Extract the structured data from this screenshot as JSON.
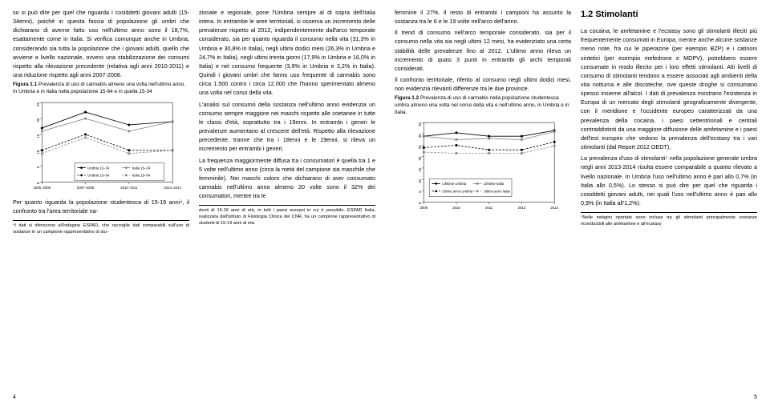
{
  "left_page": {
    "col1": {
      "para1": "so si può dire per quel che riguarda i cosiddetti giovani adulti (15-34enni), poiché in questa fascia di popolazione gli umbri che dichiarano di averne fatto uso nell'ultimo anno sono il 18,7%, esattamente come in Italia. Si verifica comunque anche in Umbria, considerando sia tutta la popolazione che i giovani adulti, quello che avviene a livello nazionale, ovvero una stabilizzazione dei consumi rispetto alla rilevazione precedente (relativa agli anni 2010-2011) e una riduzione rispetto agli anni 2007-2008.",
      "figcap": "Prevalenza di uso di cannabis almeno una volta nell'ultimo anno. In Umbria e in Italia nella popolazione 15-64 e in quella 15-34",
      "fignum": "Figura 1.1",
      "after_chart": "Per quanto riguarda la popolazione studentesca di 15-19 anni⁴, il confronto tra l'area territoriale na-",
      "footnote": "⁴I dati si riferiscono all'indagine ESPAD, che raccoglie dati comparabili sull'uso di sostanze in un campione rappresentativo di stu-"
    },
    "col2": {
      "para1": "zionale e regionale, pone l'Umbria sempre al di sopra dell'Italia intera. In entrambe le aree territoriali, si osserva un incremento delle prevalenze rispetto al 2012, indipendentemente dall'arco temporale considerato, sia per quanto riguarda il consumo nella vita (31,3% in Umbria e 30,8% in Italia), negli ultimi dodici mesi (26,3% in Umbria e 24,7% in Italia), negli ultimi trenta giorni (17,9% in Umbria e 16,0% in Italia) e nel consumo frequente (3,9% in Umbria e 3,2% in Italia). Quindi i giovani umbri che fanno uso frequente di cannabis sono circa 1.500 contro i circa 12.000 che l'hanno sperimentato almeno una volta nel corso della vita.",
      "para2": "L'analisi sul consumo della sostanza nell'ultimo anno evidenzia un consumo sempre maggiore nei maschi rispetto alle coetanee in tutte le classi d'età, soprattutto tra i 19enni. In entrambi i generi le prevalenze aumentano al crescere dell'età. Rispetto alla rilevazione precedente, tranne che tra i 18enni e le 19enni, si rileva un incremento per entrambi i generi.",
      "para3": "La frequenza maggiormente diffusa tra i consumatori è quella tra 1 e 5 volte nell'ultimo anno (circa la metà del campione sia maschile che femminile). Nei maschi coloro che dichiarano di aver consumato cannabis nell'ultimo anno almeno 20 volte sono il 32% dei consumatori, mentre tra le",
      "footnote": "denti di 15-16 anni di età, in tutti i paesi europei in cui è possibile. ESPAD Italia, realizzata dall'Istituto di Fisiologia Clinica del CNR, ha un campione rappresentativo di studenti di 15-19 anni di età."
    },
    "pagenum": "4",
    "chart1": {
      "x_labels": [
        "2005−2006",
        "2007−2008",
        "2010−2011",
        "2013−2014"
      ],
      "y_ticks": [
        0,
        5,
        10,
        15,
        20,
        25
      ],
      "ymax": 25,
      "series": [
        {
          "label": "Umbria 15−34",
          "values": [
            17,
            22,
            18,
            19
          ],
          "color": "#000000",
          "marker": "circle",
          "dash": "0"
        },
        {
          "label": "Umbria 15−64",
          "values": [
            10,
            15,
            10,
            10
          ],
          "color": "#000000",
          "marker": "circle",
          "dash": "3,2"
        },
        {
          "label": "Italia 15−34",
          "values": [
            16,
            20,
            16,
            19
          ],
          "color": "#888888",
          "marker": "square",
          "dash": "0"
        },
        {
          "label": "Italia 15−64",
          "values": [
            9,
            14,
            9,
            10
          ],
          "color": "#888888",
          "marker": "square",
          "dash": "3,2"
        }
      ]
    }
  },
  "right_page": {
    "col1": {
      "para1": "femmine il 27%. Il resto di entrambi i campioni ha assunto la sostanza tra le 6 e le 19 volte nell'arco dell'anno.",
      "para2": "Il trend di consumo nell'arco temporale considerato, sia per il consumo nella vita sia negli ultimi 12 mesi, ha evidenziato una certa stabilità delle prevalenze fino al 2012. L'ultimo anno rileva un incremento di quasi 3 punti in entrambi gli archi temporali considerati.",
      "para3": "Il confronto territoriale, riferito al consumo negli ultimi dodici mesi, non evidenzia rilevanti differenze tra le due province.",
      "figcap": "Prevalenza di uso di cannabis nella popolazione studentesca umbra almeno una volta nel corso della vita e nell'ultimo anno, in Umbria e in Italia.",
      "fignum": "Figura 1.2"
    },
    "col2": {
      "heading": "1.2  Stimolanti",
      "para1": "La cocaina, le amfetamine e l'ecstasy sono gli stimolanti illeciti più frequentemente consumati in Europa, mentre anche alcune sostanze meno note, fra cui le piperazine (per esempio BZP) e i catinoni sintetici (per esempio mefedrone e MDPV), potrebbero essere consumate in modo illecito per i loro effetti stimolanti. Alti livelli di consumo di stimolanti tendono a essere associati agli ambienti della vita notturna e alle discoteche, ove queste droghe si consumano spesso insieme all'alcol. I dati di prevalenza mostrano l'esistenza in Europa di un mercato degli stimolanti geograficamente divergente, con il meridione e l'occidente europeo caratterizzati da una prevalenza della cocaina, i paesi settentrionali e centrali contraddistinti da una maggiore diffusione delle amfetamine e i paesi dell'est europeo che vedono la prevalenza dell'ecstasy tra i vari stimolanti (dal Report 2012 OEDT).",
      "para2": "La prevalenza d'uso di stimolanti⁵ nella popolazione generale umbra negli anni 2013-2014 risulta essere comparabile a quanto rilevato a livello nazionale. In Umbria l'uso nell'ultimo anno è pari allo 0,7% (in Italia allo 0,5%). Lo stesso si può dire per quel che riguarda i cosiddetti giovani adulti, nei quali l'uso nell'ultimo anno è pari allo 0,9% (in Italia all'1,2%).",
      "footnote": "⁵Nelle indagini riportate sono incluse tra gli stimolanti principalmente sostanze riconducibili alle anfetamine e all'ecstasy"
    },
    "pagenum": "5",
    "chart2": {
      "x_labels": [
        "2009",
        "2010",
        "2011",
        "2012",
        "2013"
      ],
      "y_ticks": [
        0,
        5,
        10,
        15,
        20,
        25,
        30,
        35
      ],
      "ymax": 35,
      "series": [
        {
          "label": "Lifetime Umbria",
          "values": [
            29,
            30.5,
            29,
            29,
            31.5
          ],
          "color": "#000000",
          "marker": "circle",
          "dash": "0"
        },
        {
          "label": "Ultimo anno Umbria",
          "values": [
            24,
            25,
            23,
            23,
            26.5
          ],
          "color": "#000000",
          "marker": "circle",
          "dash": "3,2"
        },
        {
          "label": "Lifetime Italia",
          "values": [
            29,
            27.5,
            28,
            27.5,
            31
          ],
          "color": "#888888",
          "marker": "square",
          "dash": "0"
        },
        {
          "label": "Ultimo anno Italia",
          "values": [
            22,
            21.5,
            21.5,
            21.5,
            24.7
          ],
          "color": "#888888",
          "marker": "square",
          "dash": "3,2"
        }
      ]
    }
  }
}
